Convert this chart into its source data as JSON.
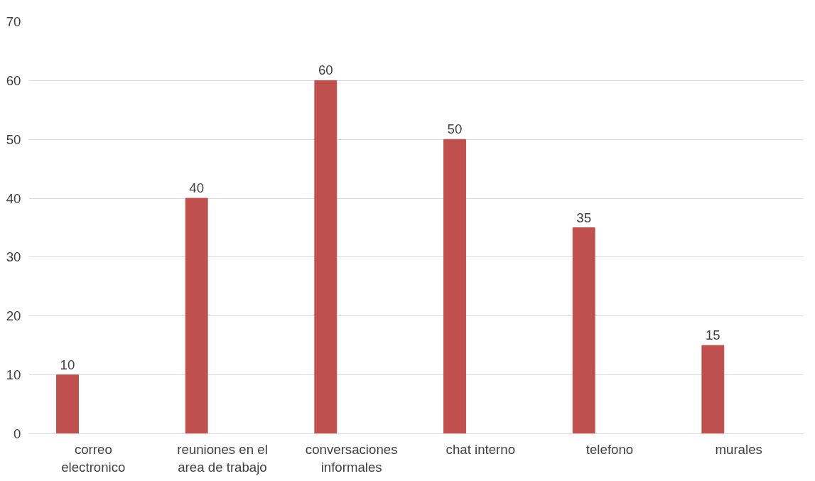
{
  "chart_data": {
    "type": "bar",
    "categories": [
      "correo electronico",
      "reuniones en el area de trabajo",
      "conversaciones informales",
      "chat interno",
      "telefono",
      "murales"
    ],
    "series": [
      {
        "color": "#c0504d",
        "values": [
          10,
          40,
          60,
          50,
          35,
          15
        ]
      }
    ],
    "ylim": [
      0,
      70
    ],
    "yticks": [
      0,
      10,
      20,
      30,
      40,
      50,
      60,
      70
    ],
    "grid": "y",
    "data_labels": true
  }
}
